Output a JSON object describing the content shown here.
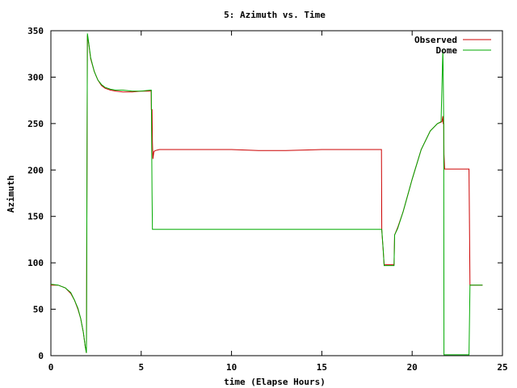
{
  "chart_data": {
    "type": "line",
    "title": "5: Azimuth vs. Time",
    "xlabel": "time (Elapse Hours)",
    "ylabel": "Azimuth",
    "xlim": [
      0,
      25
    ],
    "ylim": [
      0,
      350
    ],
    "xticks": [
      0,
      5,
      10,
      15,
      20,
      25
    ],
    "yticks": [
      0,
      50,
      100,
      150,
      200,
      250,
      300,
      350
    ],
    "grid": false,
    "legend_position": "top-right",
    "series": [
      {
        "name": "Observed",
        "color": "#cc0000",
        "x": [
          0,
          0.4,
          0.8,
          1.1,
          1.3,
          1.5,
          1.65,
          1.8,
          1.9,
          1.97,
          2.02,
          2.1,
          2.2,
          2.4,
          2.6,
          2.8,
          3.0,
          3.3,
          3.6,
          4.0,
          4.5,
          5.0,
          5.5,
          5.55,
          5.56,
          5.6,
          5.62,
          5.65,
          5.7,
          5.8,
          6.0,
          8.0,
          10.0,
          11.5,
          13.0,
          15.0,
          17.0,
          18.3,
          18.32,
          18.4,
          18.45,
          18.5,
          19.0,
          19.03,
          19.2,
          19.5,
          20.0,
          20.5,
          21.0,
          21.4,
          21.65,
          21.7,
          21.72,
          21.75,
          21.76,
          21.8,
          22.5,
          23.1,
          23.15,
          23.2,
          23.5,
          23.9
        ],
        "y": [
          76,
          76,
          73,
          67,
          60,
          50,
          40,
          25,
          10,
          3,
          345,
          335,
          320,
          306,
          297,
          291,
          288,
          286,
          285,
          284,
          284,
          285,
          285,
          285,
          265,
          265,
          230,
          212,
          220,
          221,
          222,
          222,
          222,
          221,
          221,
          222,
          222,
          222,
          135,
          113,
          98,
          98,
          98,
          130,
          138,
          155,
          190,
          222,
          242,
          250,
          252,
          258,
          250,
          250,
          217,
          201,
          201,
          201,
          201,
          76,
          76,
          76
        ]
      },
      {
        "name": "Dome",
        "color": "#00aa00",
        "x": [
          0,
          0.4,
          0.8,
          1.1,
          1.3,
          1.5,
          1.65,
          1.8,
          1.9,
          1.97,
          2.02,
          2.1,
          2.2,
          2.4,
          2.6,
          2.8,
          3.0,
          3.3,
          3.6,
          4.0,
          4.5,
          5.0,
          5.5,
          5.55,
          5.56,
          5.6,
          5.62,
          5.7,
          6.0,
          8.0,
          10.0,
          12.0,
          14.0,
          16.0,
          18.3,
          18.32,
          18.4,
          18.45,
          18.5,
          19.0,
          19.03,
          19.2,
          19.5,
          20.0,
          20.5,
          21.0,
          21.4,
          21.6,
          21.7,
          21.72,
          21.75,
          21.76,
          21.8,
          22.5,
          23.1,
          23.15,
          23.2,
          23.5,
          23.9
        ],
        "y": [
          77,
          76,
          73,
          68,
          60,
          51,
          40,
          25,
          10,
          3,
          347,
          336,
          321,
          306,
          297,
          292,
          289,
          287,
          286,
          286,
          285,
          285,
          286,
          286,
          286,
          175,
          136,
          136,
          136,
          136,
          136,
          136,
          136,
          136,
          136,
          136,
          114,
          97,
          97,
          97,
          130,
          137,
          155,
          190,
          222,
          242,
          250,
          252,
          330,
          300,
          250,
          1,
          1,
          1,
          1,
          1,
          76,
          76,
          76
        ]
      }
    ]
  }
}
